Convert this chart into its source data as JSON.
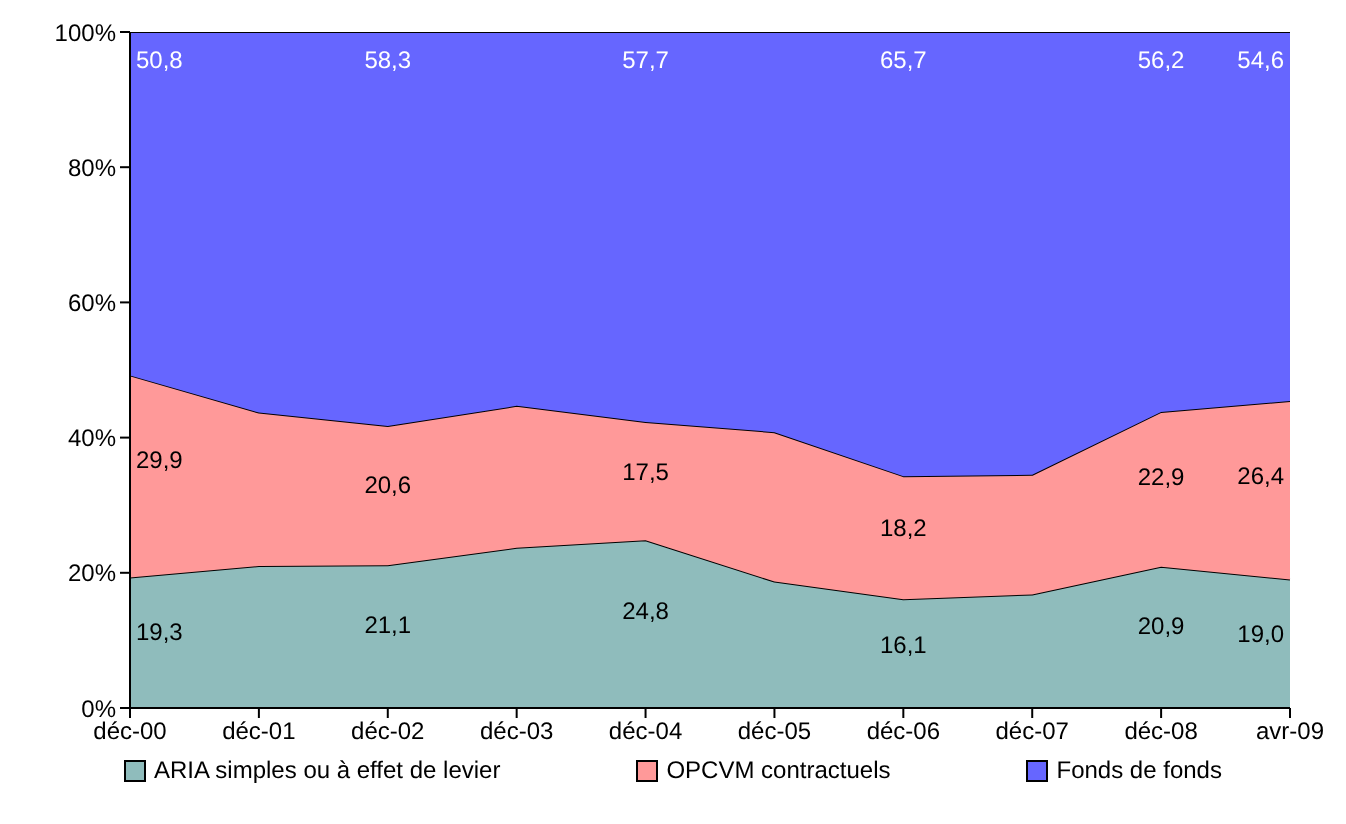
{
  "chart_data": {
    "type": "area",
    "stacked": true,
    "categories": [
      "déc-00",
      "déc-01",
      "déc-02",
      "déc-03",
      "déc-04",
      "déc-05",
      "déc-06",
      "déc-07",
      "déc-08",
      "avr-09"
    ],
    "series": [
      {
        "name": "ARIA simples ou à effet de levier",
        "color": "#8fbcbc",
        "values": [
          19.3,
          21.0,
          21.1,
          23.7,
          24.8,
          18.7,
          16.1,
          16.8,
          20.9,
          19.0
        ],
        "value_labels": [
          "19,3",
          null,
          "21,1",
          null,
          "24,8",
          null,
          "16,1",
          null,
          "20,9",
          "19,0"
        ]
      },
      {
        "name": "OPCVM contractuels",
        "color": "#ff9999",
        "values": [
          29.9,
          22.7,
          20.6,
          21.0,
          17.5,
          22.1,
          18.2,
          17.7,
          22.9,
          26.4
        ],
        "value_labels": [
          "29,9",
          null,
          "20,6",
          null,
          "17,5",
          null,
          "18,2",
          null,
          "22,9",
          "26,4"
        ]
      },
      {
        "name": "Fonds de fonds",
        "color": "#6666ff",
        "values": [
          50.8,
          56.3,
          58.3,
          55.3,
          57.7,
          59.2,
          65.7,
          65.5,
          56.2,
          54.6
        ],
        "value_labels": [
          "50,8",
          null,
          "58,3",
          null,
          "57,7",
          null,
          "65,7",
          null,
          "56,2",
          "54,6"
        ]
      }
    ],
    "ylim": [
      0,
      100
    ],
    "yticks": [
      {
        "value": 0,
        "label": "0%"
      },
      {
        "value": 20,
        "label": "20%"
      },
      {
        "value": 40,
        "label": "40%"
      },
      {
        "value": 60,
        "label": "60%"
      },
      {
        "value": 80,
        "label": "80%"
      },
      {
        "value": 100,
        "label": "100%"
      }
    ],
    "grid": false,
    "legend": "bottom",
    "line_style": "solid",
    "marker": "none"
  }
}
